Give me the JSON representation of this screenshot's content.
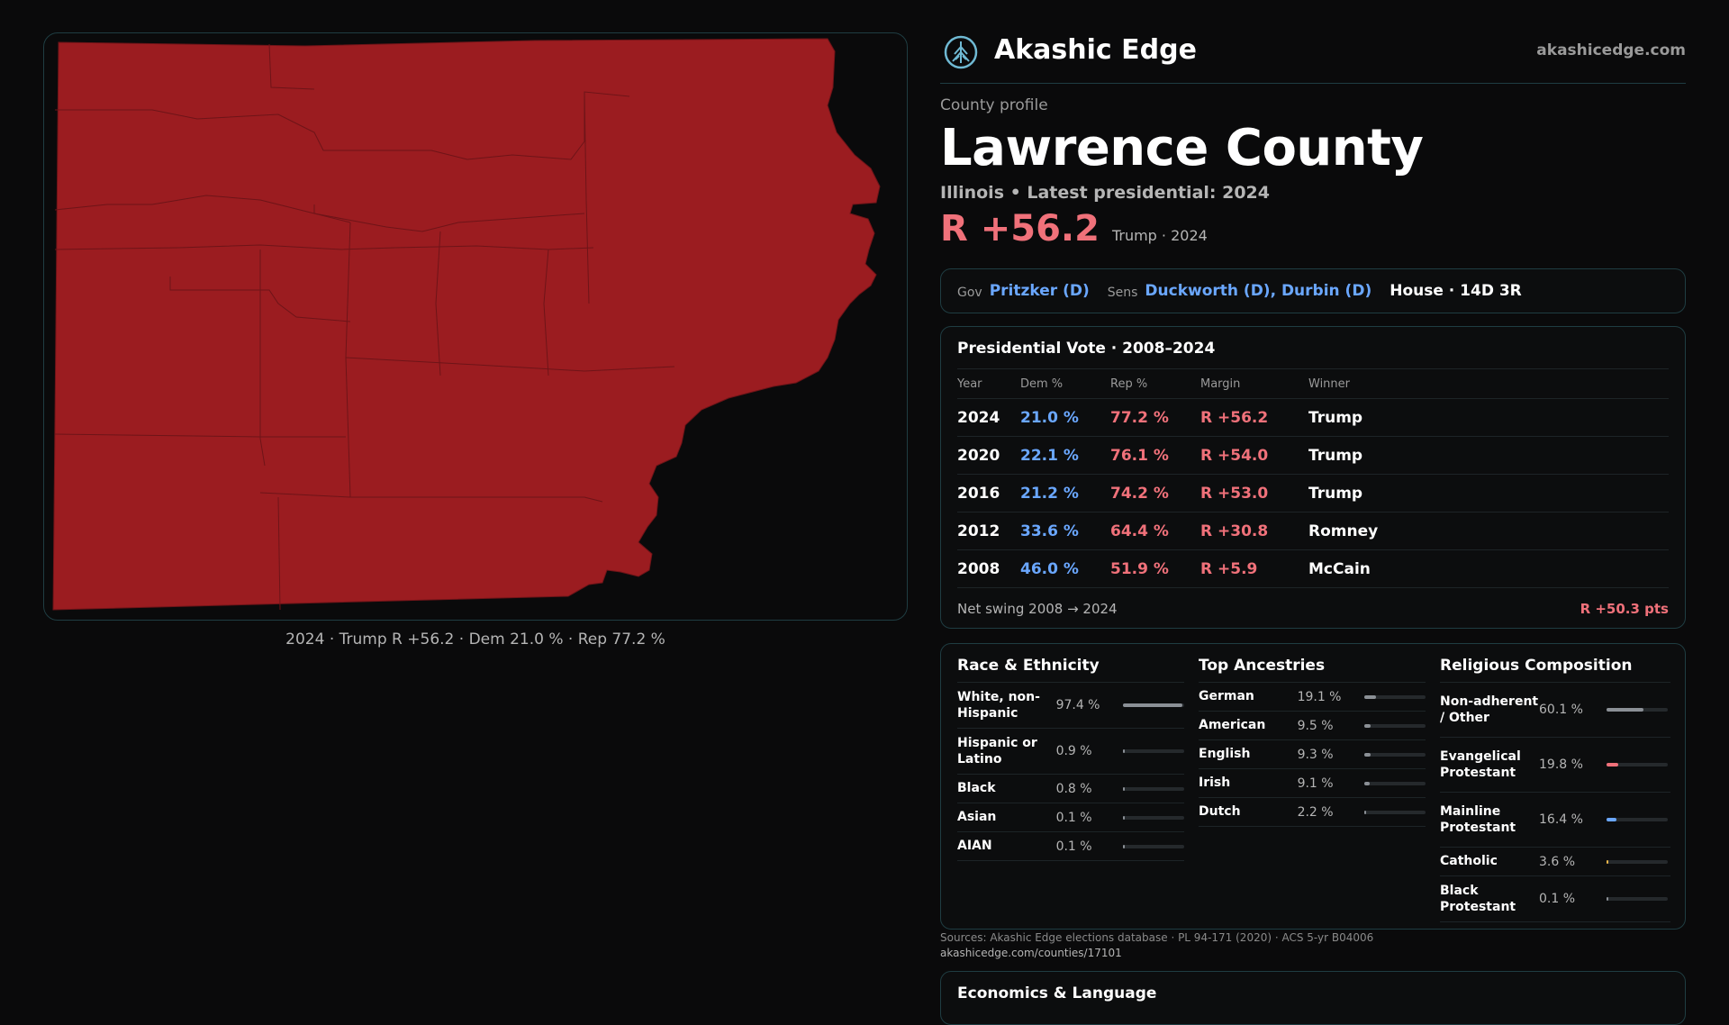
{
  "map": {
    "fill_color": "#9b1c20",
    "caption": "2024 · Trump R +56.2 · Dem 21.0 % · Rep 77.2 %"
  },
  "header": {
    "brand": "Akashic Edge",
    "site": "akashicedge.com",
    "logo_icon": "tree-emblem-icon"
  },
  "profile": {
    "kicker": "County profile",
    "county": "Lawrence County",
    "subline": "Illinois • Latest presidential: 2024",
    "margin": "R +56.2",
    "margin_note": "Trump · 2024",
    "margin_color": "#f0717a"
  },
  "officials": {
    "gov_label": "Gov",
    "gov": "Pritzker (D)",
    "sens_label": "Sens",
    "sens": "Duckworth (D), Durbin (D)",
    "house": "House · 14D 3R"
  },
  "presidential": {
    "title": "Presidential Vote · 2008–2024",
    "headers": {
      "year": "Year",
      "dem": "Dem %",
      "rep": "Rep %",
      "margin": "Margin",
      "winner": "Winner"
    },
    "rows": [
      {
        "year": "2024",
        "dem": "21.0 %",
        "rep": "77.2 %",
        "margin": "R +56.2",
        "winner": "Trump"
      },
      {
        "year": "2020",
        "dem": "22.1 %",
        "rep": "76.1 %",
        "margin": "R +54.0",
        "winner": "Trump"
      },
      {
        "year": "2016",
        "dem": "21.2 %",
        "rep": "74.2 %",
        "margin": "R +53.0",
        "winner": "Trump"
      },
      {
        "year": "2012",
        "dem": "33.6 %",
        "rep": "64.4 %",
        "margin": "R +30.8",
        "winner": "Romney"
      },
      {
        "year": "2008",
        "dem": "46.0 %",
        "rep": "51.9 %",
        "margin": "R +5.9",
        "winner": "McCain"
      }
    ],
    "swing_label": "Net swing 2008 → 2024",
    "swing_value": "R +50.3 pts"
  },
  "race": {
    "title": "Race & Ethnicity",
    "bar_color": "#8b9096",
    "items": [
      {
        "name": "White, non-Hispanic",
        "value": "97.4 %",
        "share": 97.4
      },
      {
        "name": "Hispanic or Latino",
        "value": "0.9 %",
        "share": 0.9
      },
      {
        "name": "Black",
        "value": "0.8 %",
        "share": 0.8
      },
      {
        "name": "Asian",
        "value": "0.1 %",
        "share": 0.1
      },
      {
        "name": "AIAN",
        "value": "0.1 %",
        "share": 0.1
      }
    ]
  },
  "ancestry": {
    "title": "Top Ancestries",
    "bar_color": "#8b9096",
    "items": [
      {
        "name": "German",
        "value": "19.1 %",
        "share": 19.1
      },
      {
        "name": "American",
        "value": "9.5 %",
        "share": 9.5
      },
      {
        "name": "English",
        "value": "9.3 %",
        "share": 9.3
      },
      {
        "name": "Irish",
        "value": "9.1 %",
        "share": 9.1
      },
      {
        "name": "Dutch",
        "value": "2.2 %",
        "share": 2.2
      }
    ]
  },
  "religion": {
    "title": "Religious Composition",
    "items": [
      {
        "name": "Non-adherent / Other",
        "value": "60.1 %",
        "share": 60.1,
        "color": "#8b9096"
      },
      {
        "name": "Evangelical Protestant",
        "value": "19.8 %",
        "share": 19.8,
        "color": "#f0717a"
      },
      {
        "name": "Mainline Protestant",
        "value": "16.4 %",
        "share": 16.4,
        "color": "#6aa7ff"
      },
      {
        "name": "Catholic",
        "value": "3.6 %",
        "share": 3.6,
        "color": "#f2b84b"
      },
      {
        "name": "Black Protestant",
        "value": "0.1 %",
        "share": 0.1,
        "color": "#8b9096"
      }
    ]
  },
  "footer": {
    "sources": "Sources: Akashic Edge elections database · PL 94-171 (2020) · ACS 5-yr B04006",
    "url": "akashicedge.com/counties/17101",
    "next_section": "Economics & Language"
  }
}
